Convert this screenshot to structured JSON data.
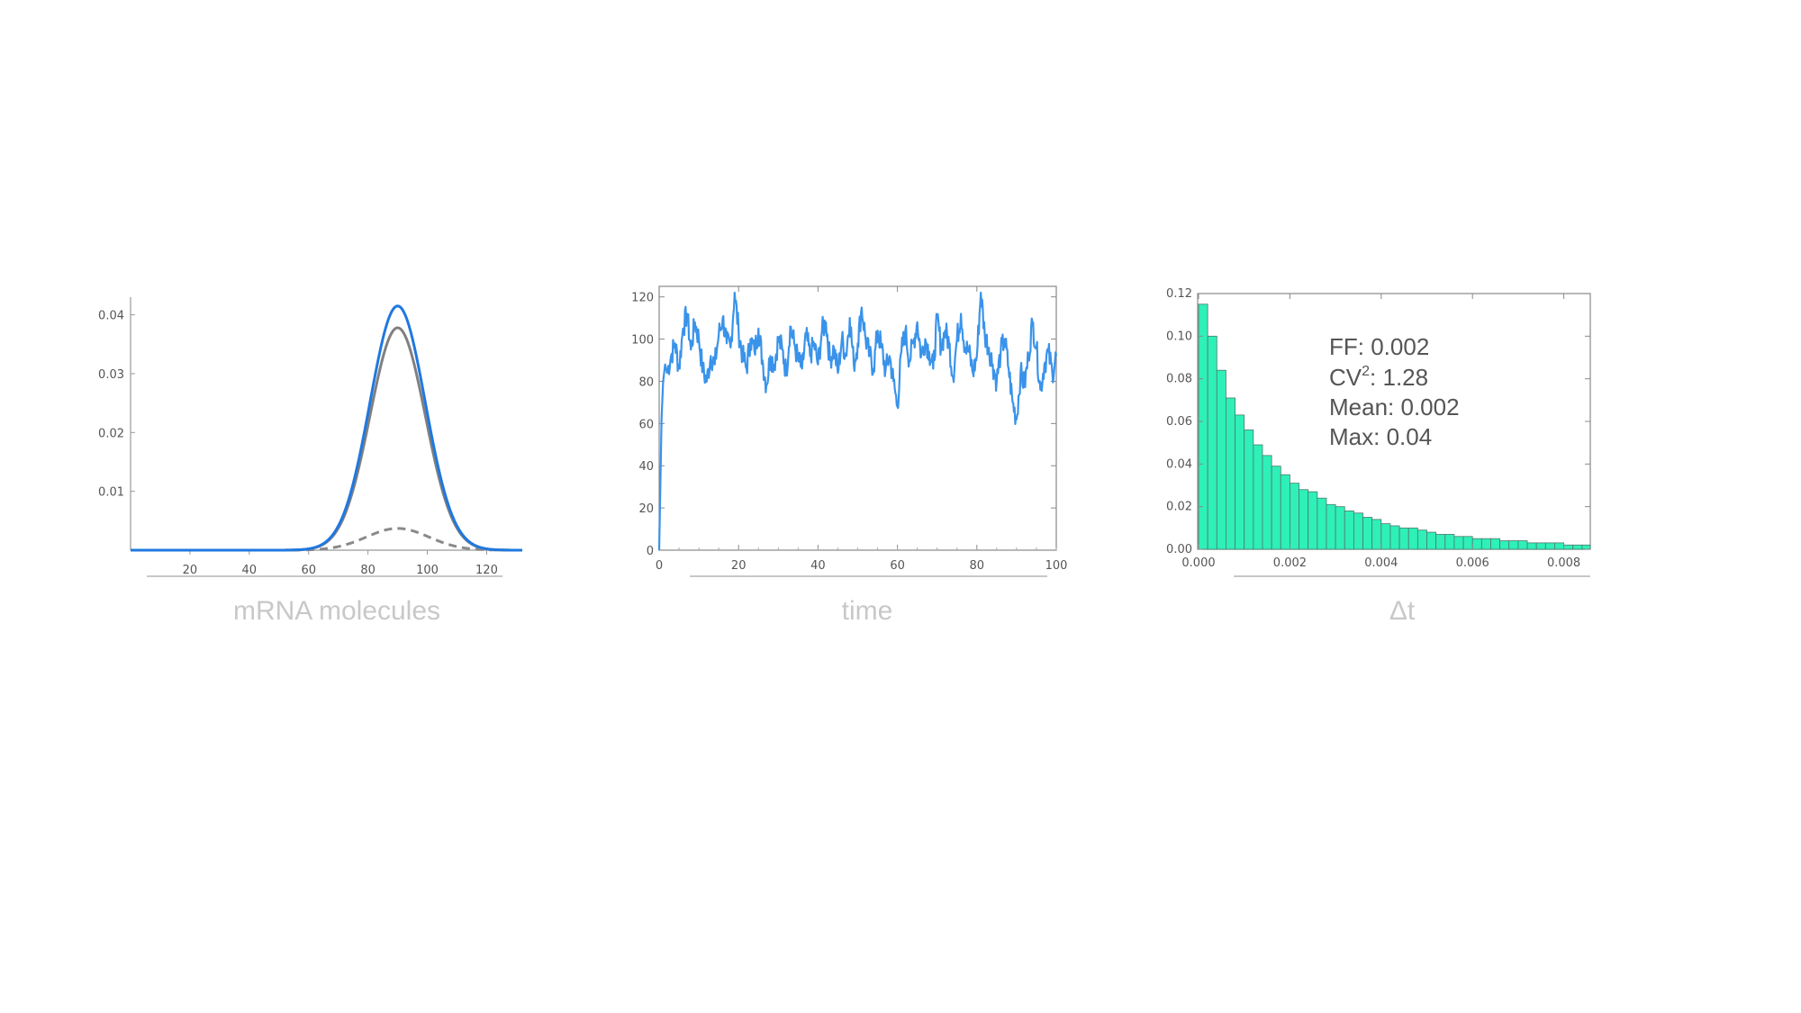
{
  "colors": {
    "blue": "#1f78e0",
    "trace_blue": "#3a93ea",
    "gray": "#808080",
    "dashed_gray": "#8a8a8a",
    "hist_fill": "#2ef0b8",
    "hist_stroke": "#4d7a6c",
    "caption": "#c8c8c8",
    "axis": "#555555"
  },
  "captions": {
    "left": "mRNA molecules",
    "middle": "time",
    "right": "Δt"
  },
  "stats": {
    "ff": "FF: 0.002",
    "cv_prefix": "CV",
    "cv_sup": "2",
    "cv_value": ": 1.28",
    "mean": "Mean: 0.002",
    "max": "Max: 0.04"
  },
  "chart_data": [
    {
      "type": "line",
      "xlabel": "mRNA molecules",
      "xlim": [
        0,
        132
      ],
      "ylim": [
        0,
        0.043
      ],
      "x_ticks": [
        20,
        40,
        60,
        80,
        100,
        120
      ],
      "x_tick_labels": [
        "20",
        "40",
        "60",
        "80",
        "100",
        "120"
      ],
      "y_ticks": [
        0.01,
        0.02,
        0.03,
        0.04
      ],
      "y_tick_labels": [
        "0.01",
        "0.02",
        "0.03",
        "0.04"
      ],
      "series": [
        {
          "style": "solid",
          "color": "blue",
          "shape": "gaussian",
          "mean": 90,
          "sd": 9.3,
          "peak": 0.0415
        },
        {
          "style": "solid",
          "color": "gray",
          "shape": "gaussian",
          "mean": 90,
          "sd": 9.3,
          "peak": 0.0378
        },
        {
          "style": "dashed",
          "color": "dashed_gray",
          "shape": "gaussian",
          "mean": 90,
          "sd": 10.5,
          "peak": 0.0037
        }
      ]
    },
    {
      "type": "line",
      "xlabel": "time",
      "xlim": [
        0,
        100
      ],
      "ylim": [
        0,
        125
      ],
      "x_ticks": [
        0,
        20,
        40,
        60,
        80,
        100
      ],
      "x_tick_labels": [
        "0",
        "20",
        "40",
        "60",
        "80",
        "100"
      ],
      "y_ticks": [
        0,
        20,
        40,
        60,
        80,
        100,
        120
      ],
      "y_tick_labels": [
        "0",
        "20",
        "40",
        "60",
        "80",
        "100",
        "120"
      ],
      "series": [
        {
          "color": "trace_blue",
          "x": [
            0,
            0.3,
            0.6,
            1,
            1.5,
            2,
            3,
            4,
            5,
            6,
            7,
            8,
            9,
            10,
            11,
            12,
            13,
            14,
            15,
            16,
            17,
            18,
            19,
            20,
            21,
            22,
            23,
            24,
            25,
            26,
            27,
            28,
            29,
            30,
            31,
            32,
            33,
            34,
            35,
            36,
            37,
            38,
            39,
            40,
            41,
            42,
            43,
            44,
            45,
            46,
            47,
            48,
            49,
            50,
            51,
            52,
            53,
            54,
            55,
            56,
            57,
            58,
            59,
            60,
            61,
            62,
            63,
            64,
            65,
            66,
            67,
            68,
            69,
            70,
            71,
            72,
            73,
            74,
            75,
            76,
            77,
            78,
            79,
            80,
            81,
            82,
            83,
            84,
            85,
            86,
            87,
            88,
            89,
            90,
            91,
            92,
            93,
            94,
            95,
            96,
            97,
            98,
            99,
            100
          ],
          "y": [
            0,
            30,
            62,
            80,
            88,
            84,
            92,
            98,
            86,
            105,
            112,
            95,
            108,
            100,
            85,
            80,
            92,
            88,
            102,
            110,
            98,
            96,
            122,
            104,
            92,
            86,
            100,
            94,
            105,
            90,
            78,
            92,
            88,
            100,
            95,
            84,
            106,
            98,
            90,
            86,
            102,
            92,
            98,
            88,
            104,
            108,
            90,
            96,
            84,
            100,
            92,
            110,
            88,
            98,
            115,
            100,
            92,
            86,
            104,
            96,
            85,
            92,
            80,
            68,
            94,
            104,
            90,
            98,
            108,
            92,
            100,
            94,
            86,
            110,
            96,
            104,
            98,
            82,
            100,
            112,
            96,
            94,
            84,
            92,
            122,
            102,
            96,
            88,
            80,
            94,
            100,
            86,
            70,
            62,
            84,
            78,
            92,
            108,
            96,
            76,
            88,
            94,
            84,
            92
          ]
        }
      ]
    },
    {
      "type": "bar",
      "xlabel": "Δt",
      "xlim": [
        0,
        0.0086
      ],
      "ylim": [
        0,
        0.12
      ],
      "x_ticks": [
        0,
        0.002,
        0.004,
        0.006,
        0.008
      ],
      "x_tick_labels": [
        "0.000",
        "0.002",
        "0.004",
        "0.006",
        "0.008"
      ],
      "y_ticks": [
        0,
        0.02,
        0.04,
        0.06,
        0.08,
        0.1,
        0.12
      ],
      "y_tick_labels": [
        "0.00",
        "0.02",
        "0.04",
        "0.06",
        "0.08",
        "0.10",
        "0.12"
      ],
      "bin_width": 0.0002,
      "bin_start": 0,
      "values": [
        0.115,
        0.1,
        0.084,
        0.071,
        0.063,
        0.056,
        0.049,
        0.044,
        0.039,
        0.035,
        0.031,
        0.028,
        0.027,
        0.024,
        0.021,
        0.02,
        0.018,
        0.017,
        0.015,
        0.014,
        0.012,
        0.011,
        0.01,
        0.01,
        0.009,
        0.008,
        0.007,
        0.007,
        0.006,
        0.006,
        0.005,
        0.005,
        0.005,
        0.004,
        0.004,
        0.004,
        0.003,
        0.003,
        0.003,
        0.003,
        0.002,
        0.002,
        0.002
      ]
    }
  ]
}
